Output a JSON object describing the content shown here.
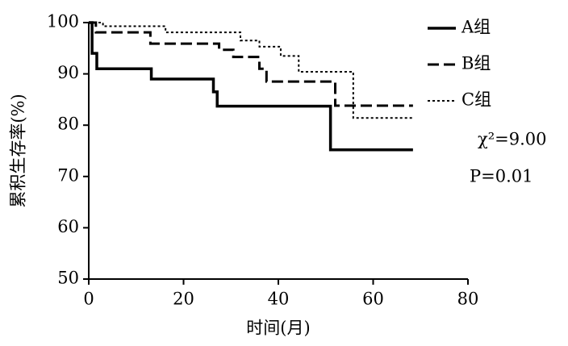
{
  "chart_data": {
    "type": "step",
    "xlabel": "时间(月)",
    "ylabel": "累积生存率(%)",
    "xlim": [
      0,
      80
    ],
    "xticks": [
      0,
      20,
      40,
      60,
      80
    ],
    "ylim": [
      50,
      100
    ],
    "yticks": [
      50,
      60,
      70,
      80,
      90,
      100
    ],
    "series": [
      {
        "name": "A组",
        "color": "#000000",
        "style": "solid",
        "x": [
          0,
          0.7,
          1.7,
          13.2,
          26.3,
          27.1,
          51,
          68.4
        ],
        "values": [
          100,
          94,
          91,
          89,
          86.5,
          83.7,
          75.2,
          75.2
        ]
      },
      {
        "name": "B组",
        "color": "#000000",
        "style": "dashed",
        "x": [
          0,
          1.5,
          13,
          27.5,
          30.5,
          36,
          37.5,
          52,
          68.4
        ],
        "values": [
          100,
          98.1,
          95.9,
          94.7,
          93.3,
          91,
          88.5,
          83.8,
          83.8
        ]
      },
      {
        "name": "C组",
        "color": "#000000",
        "style": "dotted",
        "x": [
          0,
          3,
          16.2,
          32,
          36,
          40.5,
          44.3,
          55.8,
          68.4
        ],
        "values": [
          100,
          99.3,
          98.1,
          96.5,
          95.3,
          93.5,
          90.4,
          81.4,
          81.4
        ]
      }
    ],
    "annotations": [
      "χ²=9.00",
      "P=0.01"
    ]
  }
}
